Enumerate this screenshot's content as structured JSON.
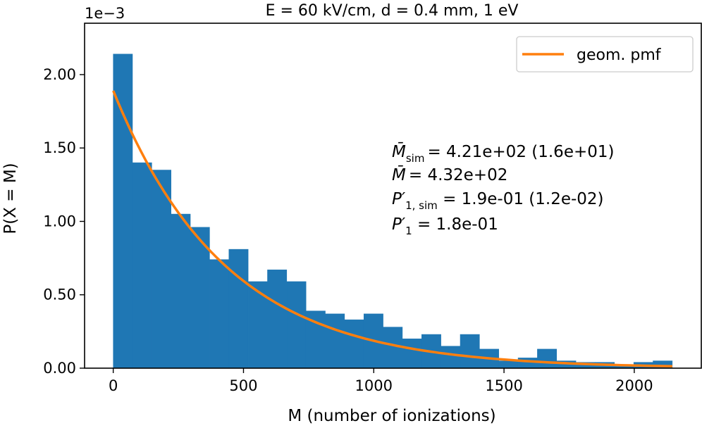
{
  "chart_data": {
    "type": "bar",
    "title": "E = 60 kV/cm, d = 0.4 mm, 1 eV",
    "xlabel": "M (number of ionizations)",
    "ylabel": "P(X = M)",
    "y_scale_label": "1e−3",
    "xlim": [
      -110,
      2260
    ],
    "ylim": [
      0,
      0.00235
    ],
    "xticks": [
      0,
      500,
      1000,
      1500,
      2000
    ],
    "xtick_labels": [
      "0",
      "500",
      "1000",
      "1500",
      "2000"
    ],
    "yticks": [
      0,
      0.0005,
      0.001,
      0.0015,
      0.002
    ],
    "ytick_labels": [
      "0.00",
      "0.50",
      "1.00",
      "1.50",
      "2.00"
    ],
    "grid": false,
    "legend_position": "top-right",
    "histogram": {
      "name": "",
      "color": "#1f77b4",
      "bin_edges": [
        0,
        74,
        148,
        222,
        296,
        370,
        444,
        518,
        592,
        666,
        740,
        814,
        888,
        962,
        1036,
        1110,
        1184,
        1258,
        1332,
        1406,
        1480,
        1554,
        1628,
        1702,
        1776,
        1850,
        1924,
        1998,
        2072,
        2146
      ],
      "values": [
        0.00214,
        0.0014,
        0.00135,
        0.00105,
        0.00096,
        0.00074,
        0.00081,
        0.00059,
        0.00067,
        0.00059,
        0.00039,
        0.00037,
        0.00033,
        0.00037,
        0.00028,
        0.0002,
        0.00023,
        0.00015,
        0.00023,
        0.00013,
        5e-05,
        7e-05,
        0.00013,
        5e-05,
        4e-05,
        4e-05,
        2e-05,
        4e-05,
        5e-05
      ]
    },
    "series": [
      {
        "name": "geom. pmf",
        "type": "line",
        "color": "#ff7f0e",
        "x_range": [
          0,
          2146
        ],
        "y_at_zero": 0.00189,
        "mean": 432
      }
    ],
    "annotations": [
      {
        "id": "msim",
        "symbol": "M̄",
        "subscript": "sim",
        "text": "= 4.21e+02 (1.6e+01)"
      },
      {
        "id": "mbar",
        "symbol": "M̄",
        "subscript": "",
        "text": "= 4.32e+02"
      },
      {
        "id": "p1sim",
        "symbol": "P′",
        "subscript": "1, sim",
        "text": " = 1.9e-01 (1.2e-02)"
      },
      {
        "id": "p1",
        "symbol": "P′",
        "subscript": "1",
        "text": " = 1.8e-01"
      }
    ]
  }
}
